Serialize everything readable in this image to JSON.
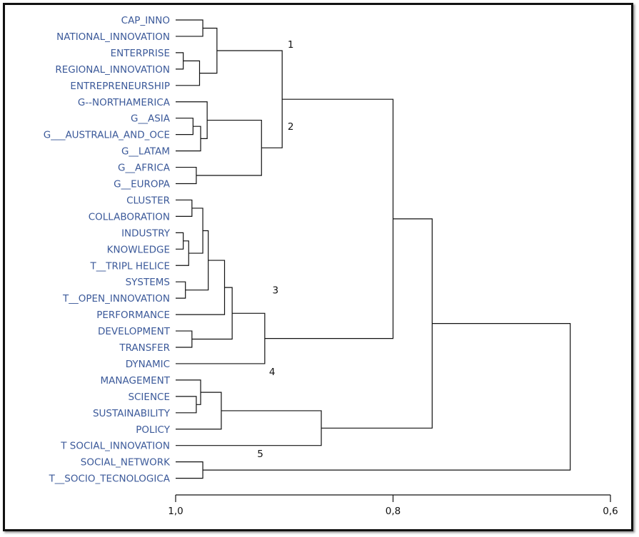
{
  "chart_data": {
    "type": "dendrogram",
    "leaves": [
      "CAP_INNO",
      "NATIONAL_INNOVATION",
      "ENTERPRISE",
      "REGIONAL_INNOVATION",
      "ENTREPRENEURSHIP",
      "G--NORTHAMERICA",
      "G__ASIA",
      "G___AUSTRALIA_AND_OCE",
      "G__LATAM",
      "G__AFRICA",
      "G__EUROPA",
      "CLUSTER",
      "COLLABORATION",
      "INDUSTRY",
      "KNOWLEDGE",
      "T__TRIPL HELICE",
      "SYSTEMS",
      "T__OPEN_INNOVATION",
      "PERFORMANCE",
      "DEVELOPMENT",
      "TRANSFER",
      "DYNAMIC",
      "MANAGEMENT",
      "SCIENCE",
      "SUSTAINABILITY",
      "POLICY",
      "T SOCIAL_INNOVATION",
      "SOCIAL_NETWORK",
      "T__SOCIO_TECNOLOGICA"
    ],
    "merges": [
      {
        "id": "m1",
        "children": [
          "L0",
          "L1"
        ],
        "height": 0.975
      },
      {
        "id": "m2",
        "children": [
          "L2",
          "L3"
        ],
        "height": 0.993
      },
      {
        "id": "m3",
        "children": [
          "m2",
          "L4"
        ],
        "height": 0.978
      },
      {
        "id": "m4",
        "children": [
          "m1",
          "m3"
        ],
        "height": 0.962
      },
      {
        "id": "m5",
        "children": [
          "L6",
          "L7"
        ],
        "height": 0.984
      },
      {
        "id": "m6",
        "children": [
          "m5",
          "L8"
        ],
        "height": 0.977
      },
      {
        "id": "m7",
        "children": [
          "L5",
          "m6"
        ],
        "height": 0.971
      },
      {
        "id": "m8",
        "children": [
          "L9",
          "L10"
        ],
        "height": 0.981
      },
      {
        "id": "m9",
        "children": [
          "m7",
          "m8"
        ],
        "height": 0.921
      },
      {
        "id": "m10",
        "children": [
          "m4",
          "m9"
        ],
        "height": 0.902
      },
      {
        "id": "m11",
        "children": [
          "L11",
          "L12"
        ],
        "height": 0.985
      },
      {
        "id": "m12",
        "children": [
          "L13",
          "L14"
        ],
        "height": 0.993
      },
      {
        "id": "m13",
        "children": [
          "m12",
          "L15"
        ],
        "height": 0.988
      },
      {
        "id": "m14",
        "children": [
          "m11",
          "m13"
        ],
        "height": 0.975
      },
      {
        "id": "m15",
        "children": [
          "L16",
          "L17"
        ],
        "height": 0.991
      },
      {
        "id": "m16",
        "children": [
          "m14",
          "m15"
        ],
        "height": 0.97
      },
      {
        "id": "m17",
        "children": [
          "m16",
          "L18"
        ],
        "height": 0.955
      },
      {
        "id": "m18",
        "children": [
          "L19",
          "L20"
        ],
        "height": 0.985
      },
      {
        "id": "m19",
        "children": [
          "m17",
          "m18"
        ],
        "height": 0.948
      },
      {
        "id": "m20",
        "children": [
          "m19",
          "L21"
        ],
        "height": 0.918
      },
      {
        "id": "m21",
        "children": [
          "L23",
          "L24"
        ],
        "height": 0.981
      },
      {
        "id": "m22",
        "children": [
          "L22",
          "m21"
        ],
        "height": 0.977
      },
      {
        "id": "m23",
        "children": [
          "m22",
          "L25"
        ],
        "height": 0.958
      },
      {
        "id": "m24",
        "children": [
          "m23",
          "L26"
        ],
        "height": 0.866
      },
      {
        "id": "m25",
        "children": [
          "L27",
          "L28"
        ],
        "height": 0.975
      },
      {
        "id": "m26",
        "children": [
          "m10",
          "m20"
        ],
        "height": 0.8
      },
      {
        "id": "m27",
        "children": [
          "m26",
          "m24"
        ],
        "height": 0.764
      },
      {
        "id": "m28",
        "children": [
          "m27",
          "m25"
        ],
        "height": 0.637
      }
    ],
    "cluster_labels": [
      {
        "text": "1",
        "after_leaf": 2,
        "height": 0.897
      },
      {
        "text": "2",
        "after_leaf": 7,
        "height": 0.897
      },
      {
        "text": "3",
        "after_leaf": 17,
        "height": 0.911
      },
      {
        "text": "4",
        "after_leaf": 22,
        "height": 0.914
      },
      {
        "text": "5",
        "after_leaf": 27,
        "height": 0.925
      }
    ],
    "x_axis": {
      "domain": [
        1.0,
        0.6
      ],
      "ticks": [
        {
          "value": 1.0,
          "label": "1,0"
        },
        {
          "value": 0.8,
          "label": "0,8"
        },
        {
          "value": 0.6,
          "label": "0,6"
        }
      ]
    }
  }
}
